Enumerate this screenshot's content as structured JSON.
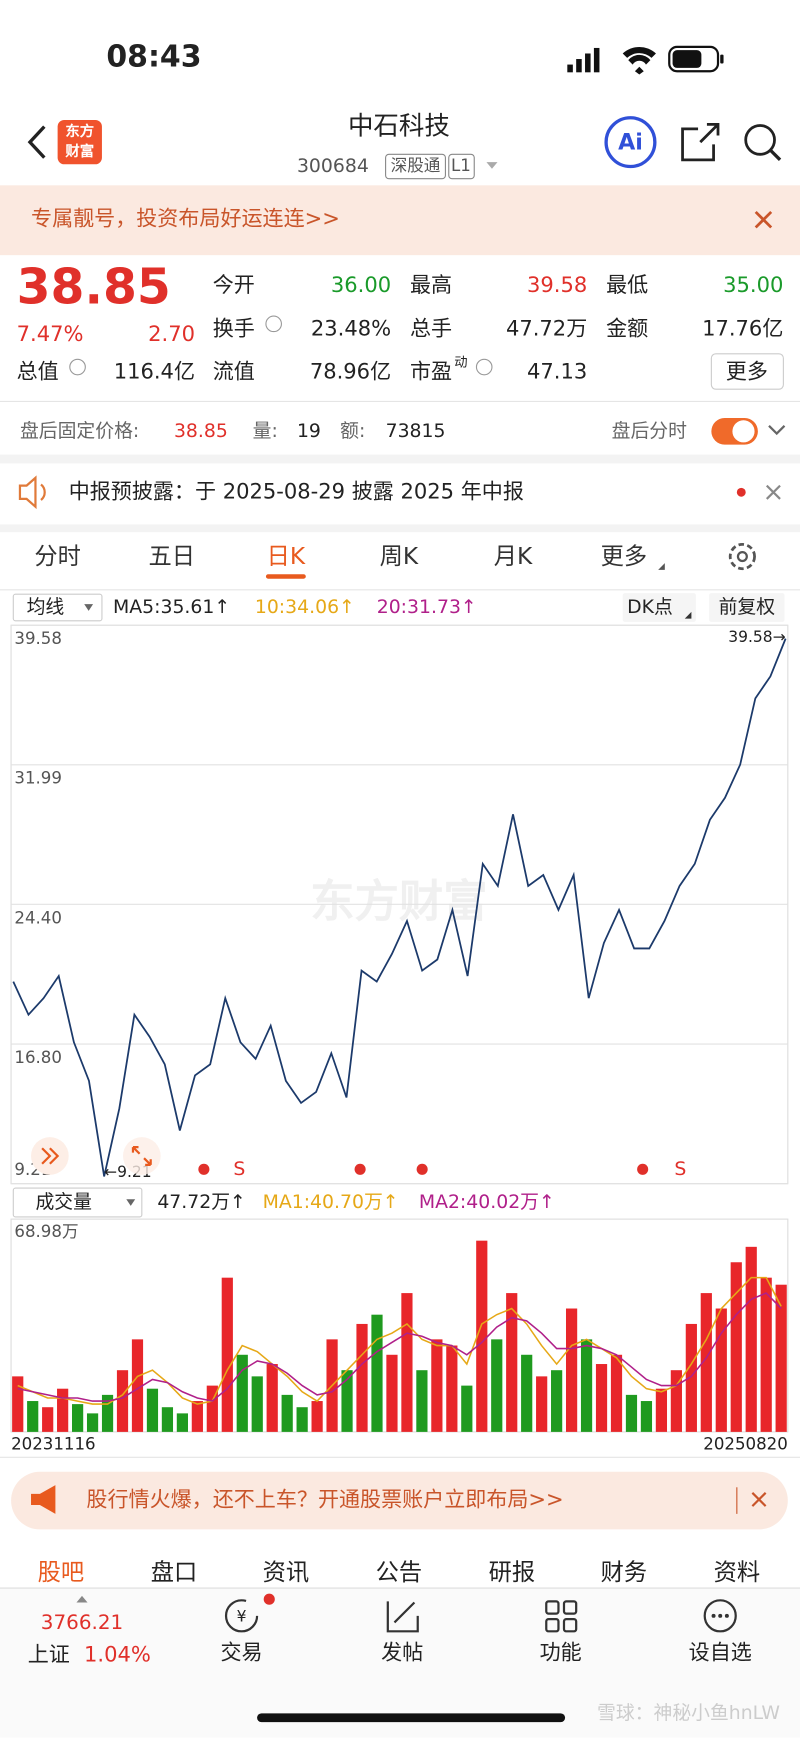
{
  "status_bar": {
    "time": "08:43"
  },
  "header": {
    "logo": [
      "东方",
      "财富"
    ],
    "title": "中石科技",
    "code": "300684",
    "tags": [
      "深股通",
      "L1"
    ],
    "ai": "Ai"
  },
  "banner": {
    "text": "专属靓号，投资布局好运连连>>"
  },
  "quote": {
    "price": "38.85",
    "change_pct": "7.47%",
    "change": "2.70",
    "fields": [
      {
        "label": "今开",
        "value": "36.00"
      },
      {
        "label": "最高",
        "value": "39.58"
      },
      {
        "label": "最低",
        "value": "35.00"
      },
      {
        "label": "换手",
        "value": "23.48%"
      },
      {
        "label": "总手",
        "value": "47.72万"
      },
      {
        "label": "金额",
        "value": "17.76亿"
      },
      {
        "label": "总值",
        "value": "116.4亿"
      },
      {
        "label": "流值",
        "value": "78.96亿"
      },
      {
        "label": "市盈",
        "sup": "动",
        "value": "47.13"
      }
    ],
    "more": "更多"
  },
  "after_hours": {
    "label": "盘后固定价格:",
    "price": "38.85",
    "volume_label": "量:",
    "volume": "19",
    "amount_label": "额:",
    "amount": "73815",
    "toggle_label": "盘后分时"
  },
  "notice": {
    "text": "中报预披露：于 2025-08-29 披露 2025 年中报"
  },
  "period_tabs": [
    "分时",
    "五日",
    "日K",
    "周K",
    "月K",
    "更多"
  ],
  "indicator_bar": {
    "selector": "均线",
    "ma5": "MA5:35.61↑",
    "ma10": "10:34.06↑",
    "ma20": "20:31.73↑",
    "dk": "DK点",
    "adjust": "前复权"
  },
  "chart_data": [
    {
      "type": "line",
      "categories": [
        "20231116",
        null,
        null,
        null,
        null,
        null,
        null,
        null,
        null,
        null,
        null,
        null,
        null,
        null,
        null,
        null,
        null,
        null,
        null,
        null,
        null,
        null,
        null,
        null,
        null,
        null,
        null,
        null,
        null,
        null,
        null,
        null,
        null,
        null,
        null,
        null,
        null,
        null,
        null,
        null,
        null,
        null,
        null,
        null,
        null,
        null,
        null,
        null,
        null,
        null,
        null,
        "20250820"
      ],
      "values": [
        20.2,
        18.4,
        19.3,
        20.5,
        16.9,
        14.8,
        9.6,
        13.3,
        18.4,
        17.2,
        15.7,
        12.1,
        15.1,
        15.7,
        19.3,
        16.9,
        16.0,
        17.8,
        14.8,
        13.6,
        14.2,
        16.3,
        13.9,
        20.8,
        20.2,
        21.7,
        23.5,
        20.8,
        21.4,
        24.1,
        20.5,
        26.6,
        25.4,
        29.3,
        25.4,
        26.0,
        24.1,
        26.0,
        19.3,
        22.3,
        24.1,
        22.0,
        22.0,
        23.5,
        25.4,
        26.6,
        29.0,
        30.2,
        32.0,
        35.6,
        36.8,
        38.85
      ],
      "color": "#1c3a6b",
      "ylim": [
        9.21,
        39.58
      ],
      "yticks": [
        39.58,
        31.99,
        {
          "value": 24.4,
          "label": "24.40"
        },
        {
          "value": 16.8,
          "label": "16.80"
        },
        9.21
      ],
      "grid": true,
      "max_label": "39.58→",
      "min_label": "←9.21",
      "watermark": "东方财富",
      "signals": [
        "S",
        "S"
      ]
    },
    {
      "type": "bar",
      "title": "成交量",
      "values": [
        18,
        10,
        8,
        14,
        9,
        6,
        12,
        20,
        30,
        14,
        8,
        6,
        10,
        15,
        50,
        25,
        18,
        22,
        12,
        8,
        10,
        30,
        20,
        35,
        38,
        25,
        45,
        20,
        30,
        28,
        15,
        62,
        30,
        45,
        25,
        18,
        20,
        40,
        30,
        22,
        25,
        12,
        10,
        14,
        20,
        35,
        45,
        40,
        55,
        60,
        50,
        47.72
      ],
      "colors": [
        "#e8262a",
        "#1f9a1f",
        "#e8262a",
        "#e8262a",
        "#1f9a1f",
        "#1f9a1f",
        "#1f9a1f",
        "#e8262a",
        "#e8262a",
        "#1f9a1f",
        "#1f9a1f",
        "#1f9a1f",
        "#e8262a",
        "#e8262a",
        "#e8262a",
        "#1f9a1f",
        "#1f9a1f",
        "#e8262a",
        "#1f9a1f",
        "#1f9a1f",
        "#e8262a",
        "#e8262a",
        "#1f9a1f",
        "#e8262a",
        "#1f9a1f",
        "#e8262a",
        "#e8262a",
        "#1f9a1f",
        "#e8262a",
        "#e8262a",
        "#1f9a1f",
        "#e8262a",
        "#1f9a1f",
        "#e8262a",
        "#1f9a1f",
        "#e8262a",
        "#1f9a1f",
        "#e8262a",
        "#1f9a1f",
        "#e8262a",
        "#e8262a",
        "#1f9a1f",
        "#1f9a1f",
        "#e8262a",
        "#e8262a",
        "#e8262a",
        "#e8262a",
        "#e8262a",
        "#e8262a",
        "#e8262a",
        "#e8262a",
        "#e8262a"
      ],
      "ylim": [
        0,
        68.98
      ],
      "yticks": [
        {
          "value": 68.98,
          "label": "68.98万"
        }
      ],
      "legend": [
        "47.72万↑",
        "MA1:40.70万↑",
        "MA2:40.02万↑"
      ],
      "series": [
        {
          "color": "#e6a817",
          "values": [
            15,
            13,
            11,
            11,
            10,
            9,
            9,
            12,
            18,
            20,
            16,
            11,
            9,
            10,
            20,
            28,
            26,
            22,
            18,
            13,
            10,
            15,
            20,
            25,
            30,
            32,
            35,
            30,
            28,
            28,
            22,
            35,
            38,
            40,
            35,
            28,
            22,
            28,
            30,
            27,
            24,
            18,
            14,
            13,
            15,
            22,
            30,
            40,
            45,
            50,
            50,
            40.7
          ]
        },
        {
          "color": "#b0208a",
          "values": [
            14,
            13,
            12,
            11,
            11,
            10,
            10,
            11,
            14,
            17,
            16,
            13,
            11,
            10,
            14,
            20,
            23,
            22,
            19,
            15,
            12,
            13,
            17,
            22,
            26,
            29,
            32,
            31,
            29,
            28,
            25,
            29,
            34,
            37,
            36,
            32,
            27,
            27,
            28,
            27,
            25,
            21,
            17,
            15,
            15,
            18,
            24,
            32,
            38,
            43,
            45,
            40.02
          ]
        }
      ]
    }
  ],
  "promo": {
    "text": "股行情火爆，还不上车？开通股票账户立即布局>>"
  },
  "section_tabs": [
    "股吧",
    "盘口",
    "资讯",
    "公告",
    "研报",
    "财务",
    "资料"
  ],
  "nav": {
    "index_value": "3766.21",
    "index_name": "上证",
    "index_change": "1.04%",
    "items": [
      "交易",
      "发帖",
      "功能",
      "设自选"
    ]
  },
  "watermark": "雪球：神秘小鱼hnLW"
}
